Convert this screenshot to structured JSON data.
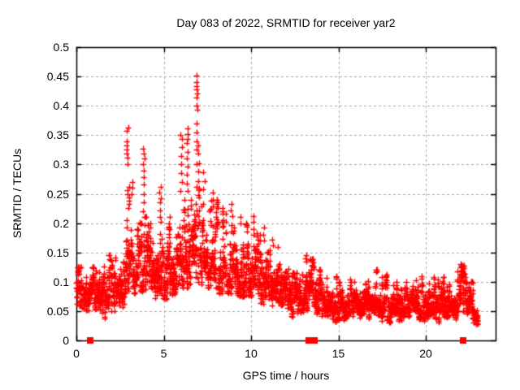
{
  "chart_data": {
    "type": "scatter",
    "title": "Day 083 of 2022, SRMTID for receiver yar2",
    "xlabel": "GPS time / hours",
    "ylabel": "SRMTID / TECUs",
    "xlim": [
      0,
      24
    ],
    "ylim": [
      0,
      0.5
    ],
    "xticks": [
      0,
      5,
      10,
      15,
      20
    ],
    "xtick_labels": [
      "0",
      "5",
      "10",
      "15",
      "20"
    ],
    "yticks": [
      0,
      0.05,
      0.1,
      0.15,
      0.2,
      0.25,
      0.3,
      0.35,
      0.4,
      0.45,
      0.5
    ],
    "ytick_labels": [
      "0",
      "0.05",
      "0.1",
      "0.15",
      "0.2",
      "0.25",
      "0.3",
      "0.35",
      "0.4",
      "0.45",
      "0.5"
    ],
    "grid": true,
    "grid_style": "dashed",
    "grid_color": "#a6a6a6",
    "border_color": "#000000",
    "marker": "plus",
    "marker_color": "#ff0000",
    "marker_size_px": 7,
    "series_name": "SRMTID",
    "max_point": {
      "x": 6.9,
      "y": 0.452
    },
    "sample_seed": 20220383,
    "epochs_per_hour": 30,
    "values_per_epoch_min": 3,
    "values_per_epoch_max": 6,
    "envelope_bins": [
      [
        0.0,
        0.3,
        0.06,
        0.095,
        0.125
      ],
      [
        0.3,
        0.8,
        0.045,
        0.075,
        0.115
      ],
      [
        0.8,
        1.3,
        0.03,
        0.08,
        0.125
      ],
      [
        1.3,
        1.8,
        0.028,
        0.08,
        0.13
      ],
      [
        1.8,
        2.3,
        0.05,
        0.09,
        0.145
      ],
      [
        2.3,
        2.8,
        0.055,
        0.1,
        0.17
      ],
      [
        2.8,
        3.2,
        0.07,
        0.13,
        0.24
      ],
      [
        3.2,
        3.7,
        0.08,
        0.13,
        0.22
      ],
      [
        3.7,
        4.1,
        0.07,
        0.125,
        0.21
      ],
      [
        4.1,
        4.6,
        0.07,
        0.12,
        0.2
      ],
      [
        4.6,
        5.2,
        0.07,
        0.115,
        0.19
      ],
      [
        5.2,
        5.8,
        0.075,
        0.12,
        0.2
      ],
      [
        5.8,
        6.2,
        0.09,
        0.14,
        0.24
      ],
      [
        6.2,
        6.6,
        0.09,
        0.15,
        0.26
      ],
      [
        6.6,
        7.1,
        0.1,
        0.16,
        0.3
      ],
      [
        7.1,
        7.6,
        0.09,
        0.15,
        0.26
      ],
      [
        7.6,
        8.1,
        0.09,
        0.14,
        0.24
      ],
      [
        8.1,
        8.6,
        0.08,
        0.13,
        0.22
      ],
      [
        8.6,
        9.2,
        0.08,
        0.12,
        0.21
      ],
      [
        9.2,
        9.8,
        0.075,
        0.115,
        0.2
      ],
      [
        9.8,
        10.4,
        0.075,
        0.12,
        0.205
      ],
      [
        10.4,
        11.0,
        0.06,
        0.105,
        0.18
      ],
      [
        11.0,
        11.6,
        0.055,
        0.1,
        0.16
      ],
      [
        11.6,
        12.2,
        0.045,
        0.09,
        0.135
      ],
      [
        12.2,
        12.9,
        0.04,
        0.078,
        0.115
      ],
      [
        12.9,
        13.3,
        0.03,
        0.08,
        0.145
      ],
      [
        13.3,
        13.67,
        0.05,
        0.09,
        0.138
      ],
      [
        13.67,
        14.2,
        0.03,
        0.07,
        0.12
      ],
      [
        14.2,
        14.9,
        0.02,
        0.055,
        0.11
      ],
      [
        14.9,
        15.6,
        0.025,
        0.055,
        0.1
      ],
      [
        15.6,
        16.4,
        0.028,
        0.06,
        0.105
      ],
      [
        16.4,
        17.2,
        0.03,
        0.065,
        0.12
      ],
      [
        17.2,
        18.0,
        0.03,
        0.063,
        0.115
      ],
      [
        18.0,
        18.8,
        0.027,
        0.06,
        0.11
      ],
      [
        18.8,
        19.6,
        0.03,
        0.065,
        0.125
      ],
      [
        19.6,
        20.4,
        0.03,
        0.06,
        0.11
      ],
      [
        20.4,
        21.2,
        0.025,
        0.058,
        0.108
      ],
      [
        21.2,
        21.8,
        0.025,
        0.056,
        0.1
      ],
      [
        21.8,
        22.3,
        0.05,
        0.088,
        0.128
      ],
      [
        22.3,
        22.7,
        0.035,
        0.06,
        0.1
      ],
      [
        22.7,
        23.0,
        0.028,
        0.045,
        0.072
      ]
    ],
    "spike_clusters": [
      {
        "t": 2.93,
        "values": [
          0.363,
          0.358,
          0.34,
          0.332,
          0.325,
          0.318,
          0.312,
          0.3
        ]
      },
      {
        "t": 2.98,
        "values": [
          0.262,
          0.256,
          0.25,
          0.244,
          0.238,
          0.232,
          0.226
        ]
      },
      {
        "t": 3.2,
        "values": [
          0.27,
          0.26,
          0.25
        ]
      },
      {
        "t": 3.85,
        "values": [
          0.327,
          0.318,
          0.31,
          0.3,
          0.289,
          0.278,
          0.266,
          0.25,
          0.235,
          0.22
        ]
      },
      {
        "t": 4.8,
        "values": [
          0.262,
          0.252,
          0.243,
          0.235,
          0.222,
          0.21,
          0.202
        ]
      },
      {
        "t": 5.3,
        "values": [
          0.21,
          0.2,
          0.19
        ]
      },
      {
        "t": 6.0,
        "values": [
          0.35,
          0.344,
          0.33,
          0.315,
          0.3,
          0.285,
          0.27,
          0.255
        ]
      },
      {
        "t": 6.35,
        "values": [
          0.362,
          0.352,
          0.344,
          0.336,
          0.322,
          0.31,
          0.296,
          0.282,
          0.268,
          0.255
        ]
      },
      {
        "t": 6.9,
        "values": [
          0.452,
          0.44,
          0.434,
          0.428,
          0.421,
          0.414,
          0.4,
          0.394,
          0.37,
          0.355,
          0.34,
          0.326
        ]
      },
      {
        "t": 7.0,
        "values": [
          0.332,
          0.318,
          0.302,
          0.288,
          0.272
        ]
      },
      {
        "t": 7.3,
        "values": [
          0.287,
          0.272,
          0.258
        ]
      },
      {
        "t": 7.8,
        "values": [
          0.252,
          0.24,
          0.228
        ]
      },
      {
        "t": 8.4,
        "values": [
          0.226,
          0.216,
          0.205,
          0.195
        ]
      },
      {
        "t": 8.9,
        "values": [
          0.232,
          0.222,
          0.212,
          0.197,
          0.186
        ]
      },
      {
        "t": 9.4,
        "values": [
          0.21,
          0.2
        ]
      },
      {
        "t": 10.15,
        "values": [
          0.212,
          0.202,
          0.19,
          0.18
        ]
      },
      {
        "t": 10.7,
        "values": [
          0.192,
          0.18,
          0.17
        ]
      },
      {
        "t": 11.2,
        "values": [
          0.172,
          0.162
        ]
      },
      {
        "t": 13.15,
        "values": [
          0.145,
          0.14,
          0.134
        ]
      },
      {
        "t": 13.5,
        "values": [
          0.138,
          0.128
        ]
      },
      {
        "t": 22.0,
        "values": [
          0.13,
          0.124,
          0.118,
          0.112,
          0.106
        ]
      },
      {
        "t": 22.15,
        "values": [
          0.118,
          0.11,
          0.103
        ]
      }
    ],
    "zero_marker_hours": [
      0.81,
      13.32,
      13.64,
      22.12
    ],
    "zero_marker_shape": "filled-square"
  }
}
